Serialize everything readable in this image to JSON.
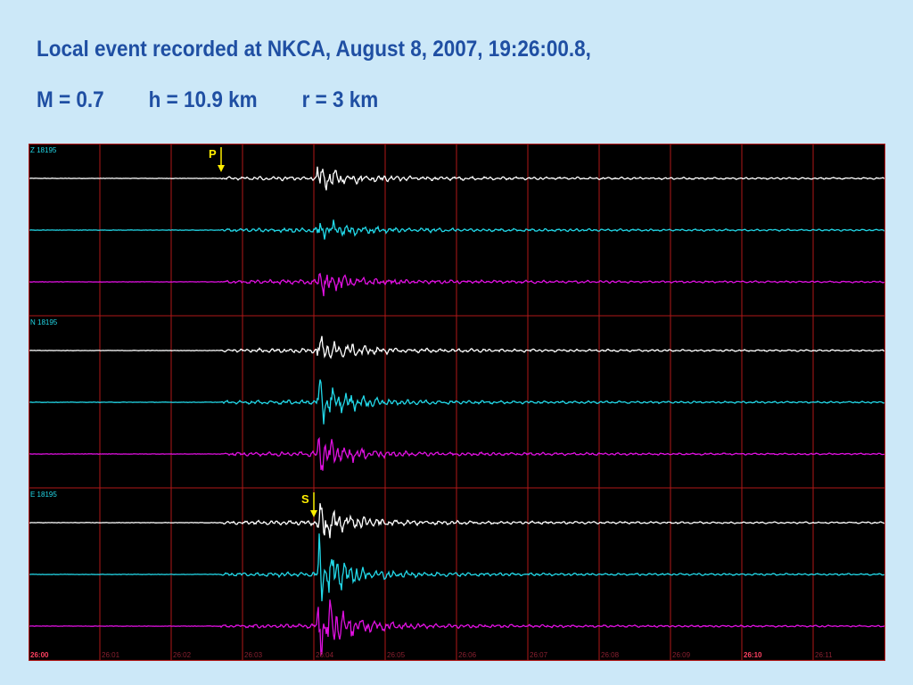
{
  "slide": {
    "title_line1": "Local event recorded at NKCA, August 8, 2007, 19:26:00.8,",
    "title_line2": "M = 0.7        h = 10.9 km        r = 3 km"
  },
  "chart_data": {
    "type": "line",
    "title": "Local event recorded at NKCA, August 8, 2007, 19:26:00.8,",
    "subtitle": "M = 0.7   h = 10.9 km   r = 3 km",
    "xlabel": "",
    "ylabel": "",
    "x_ticks": [
      "26:00",
      "26:01",
      "26:02",
      "26:03",
      "26:04",
      "26:05",
      "26:06",
      "26:07",
      "26:08",
      "26:09",
      "26:10",
      "26:11"
    ],
    "xlim": [
      "26:00",
      "26:12"
    ],
    "grid": true,
    "background": "#000000",
    "grid_color": "#b01818",
    "station_labels": [
      "Z 18195",
      "N 18195",
      "E 18195"
    ],
    "series_colors": [
      "#ffffff",
      "#22d8e8",
      "#e010e0"
    ],
    "panels": [
      {
        "label": "Z 18195",
        "traces": [
          {
            "color": "#ffffff",
            "onset_s": 2.7,
            "burst_s": 4.05,
            "peak_amp": 0.5
          },
          {
            "color": "#22d8e8",
            "onset_s": 2.7,
            "burst_s": 4.05,
            "peak_amp": 0.5
          },
          {
            "color": "#e010e0",
            "onset_s": 2.7,
            "burst_s": 4.05,
            "peak_amp": 0.55
          }
        ]
      },
      {
        "label": "N 18195",
        "traces": [
          {
            "color": "#ffffff",
            "onset_s": 2.7,
            "burst_s": 4.05,
            "peak_amp": 0.65
          },
          {
            "color": "#22d8e8",
            "onset_s": 2.7,
            "burst_s": 4.05,
            "peak_amp": 1.0
          },
          {
            "color": "#e010e0",
            "onset_s": 2.7,
            "burst_s": 4.05,
            "peak_amp": 0.85
          }
        ]
      },
      {
        "label": "E 18195",
        "traces": [
          {
            "color": "#ffffff",
            "onset_s": 2.7,
            "burst_s": 4.05,
            "peak_amp": 0.9
          },
          {
            "color": "#22d8e8",
            "onset_s": 2.7,
            "burst_s": 4.05,
            "peak_amp": 1.6
          },
          {
            "color": "#e010e0",
            "onset_s": 2.7,
            "burst_s": 4.05,
            "peak_amp": 1.5
          }
        ]
      }
    ],
    "annotations": [
      {
        "text": "P",
        "x": "26:02.7",
        "color": "#ffee00"
      },
      {
        "text": "S",
        "x": "26:04.0",
        "color": "#ffee00"
      }
    ]
  }
}
